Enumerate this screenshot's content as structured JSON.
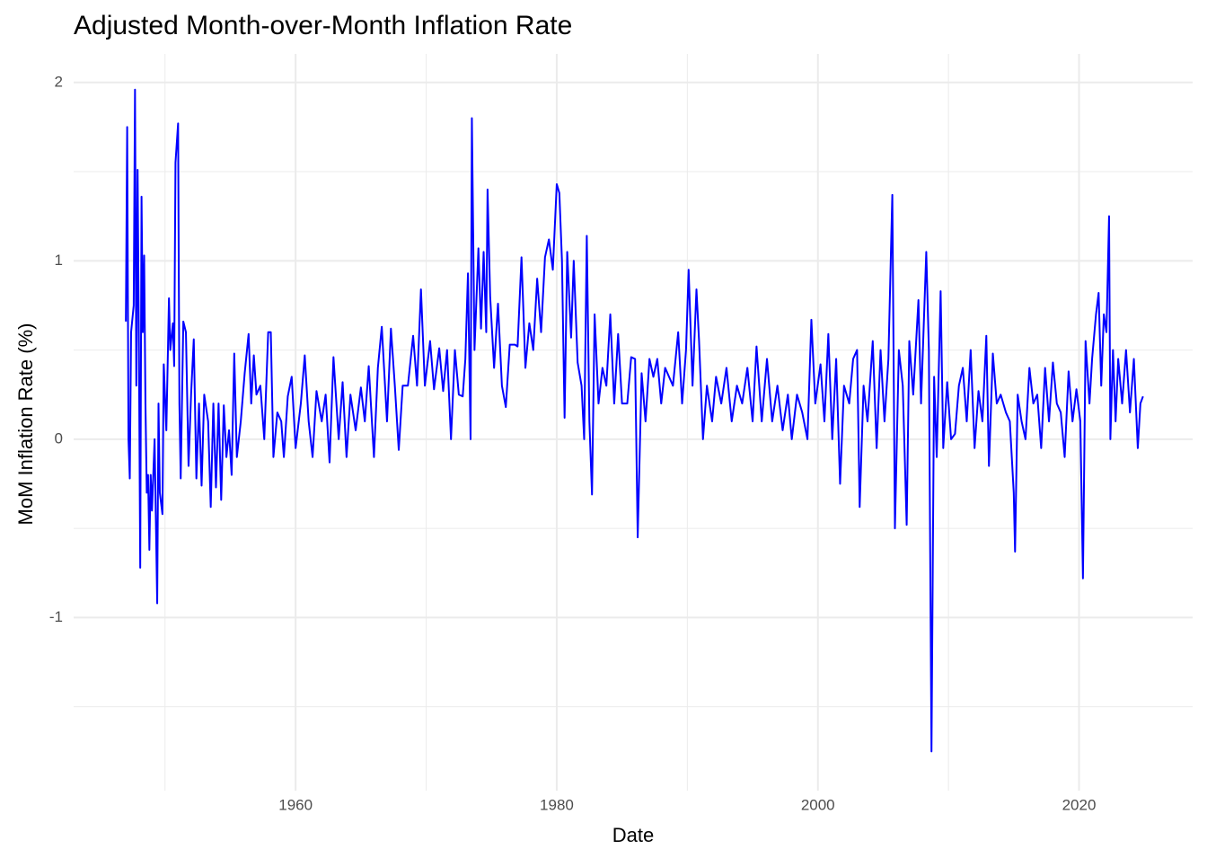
{
  "chart_data": {
    "type": "line",
    "title": "Adjusted Month-over-Month Inflation Rate",
    "x_label": "Date",
    "y_label": "MoM Inflation Rate (%)",
    "color": "#0000ff",
    "grid": true,
    "xlim": [
      1943.0,
      2028.7
    ],
    "xticks": [
      1960,
      1980,
      2000,
      2020
    ],
    "x_minor_grid": [
      1950,
      1970,
      1990,
      2010
    ],
    "ylim": [
      -1.97,
      2.16
    ],
    "yticks": [
      -1,
      0,
      1,
      2
    ],
    "y_minor_grid": [
      -1.5,
      -0.5,
      0.5,
      1.5
    ],
    "x": [
      1947.0,
      1947.1,
      1947.2,
      1947.3,
      1947.4,
      1947.6,
      1947.7,
      1947.8,
      1947.9,
      1948.0,
      1948.1,
      1948.2,
      1948.3,
      1948.4,
      1948.5,
      1948.6,
      1948.7,
      1948.8,
      1948.9,
      1949.0,
      1949.2,
      1949.4,
      1949.5,
      1949.6,
      1949.8,
      1949.9,
      1950.1,
      1950.3,
      1950.4,
      1950.6,
      1950.7,
      1950.8,
      1951.0,
      1951.1,
      1951.2,
      1951.4,
      1951.6,
      1951.8,
      1952.0,
      1952.2,
      1952.4,
      1952.6,
      1952.8,
      1953.0,
      1953.3,
      1953.5,
      1953.7,
      1953.9,
      1954.1,
      1954.3,
      1954.5,
      1954.7,
      1954.9,
      1955.1,
      1955.3,
      1955.5,
      1955.8,
      1956.1,
      1956.4,
      1956.6,
      1956.8,
      1957.0,
      1957.3,
      1957.6,
      1957.9,
      1958.1,
      1958.3,
      1958.6,
      1958.9,
      1959.1,
      1959.4,
      1959.7,
      1960.0,
      1960.4,
      1960.7,
      1961.0,
      1961.3,
      1961.6,
      1962.0,
      1962.3,
      1962.6,
      1962.9,
      1963.3,
      1963.6,
      1963.9,
      1964.2,
      1964.6,
      1965.0,
      1965.3,
      1965.6,
      1966.0,
      1966.3,
      1966.6,
      1967.0,
      1967.3,
      1967.6,
      1967.9,
      1968.2,
      1968.6,
      1969.0,
      1969.3,
      1969.6,
      1969.9,
      1970.3,
      1970.6,
      1971.0,
      1971.3,
      1971.6,
      1971.9,
      1972.2,
      1972.5,
      1972.8,
      1973.0,
      1973.2,
      1973.4,
      1973.5,
      1973.7,
      1974.0,
      1974.2,
      1974.4,
      1974.6,
      1974.7,
      1974.9,
      1975.2,
      1975.5,
      1975.8,
      1976.1,
      1976.4,
      1976.8,
      1977.0,
      1977.3,
      1977.6,
      1977.9,
      1978.2,
      1978.5,
      1978.8,
      1979.1,
      1979.4,
      1979.7,
      1980.0,
      1980.2,
      1980.4,
      1980.6,
      1980.8,
      1981.1,
      1981.3,
      1981.6,
      1981.9,
      1982.1,
      1982.3,
      1982.5,
      1982.7,
      1982.9,
      1983.2,
      1983.5,
      1983.8,
      1984.1,
      1984.4,
      1984.7,
      1985.0,
      1985.4,
      1985.7,
      1986.0,
      1986.2,
      1986.5,
      1986.8,
      1987.1,
      1987.4,
      1987.7,
      1988.0,
      1988.3,
      1988.6,
      1988.9,
      1989.3,
      1989.6,
      1989.9,
      1990.1,
      1990.4,
      1990.7,
      1990.9,
      1991.2,
      1991.5,
      1991.9,
      1992.2,
      1992.6,
      1993.0,
      1993.4,
      1993.8,
      1994.2,
      1994.6,
      1995.0,
      1995.3,
      1995.7,
      1996.1,
      1996.5,
      1996.9,
      1997.3,
      1997.7,
      1998.0,
      1998.4,
      1998.8,
      1999.2,
      1999.5,
      1999.8,
      2000.2,
      2000.5,
      2000.8,
      2001.1,
      2001.4,
      2001.7,
      2002.0,
      2002.4,
      2002.7,
      2003.0,
      2003.2,
      2003.5,
      2003.8,
      2004.2,
      2004.5,
      2004.8,
      2005.1,
      2005.4,
      2005.7,
      2005.9,
      2006.2,
      2006.5,
      2006.8,
      2007.0,
      2007.3,
      2007.7,
      2007.9,
      2008.3,
      2008.5,
      2008.7,
      2008.9,
      2009.1,
      2009.4,
      2009.6,
      2009.9,
      2010.2,
      2010.5,
      2010.8,
      2011.1,
      2011.4,
      2011.7,
      2012.0,
      2012.3,
      2012.6,
      2012.9,
      2013.1,
      2013.4,
      2013.7,
      2014.0,
      2014.4,
      2014.7,
      2015.0,
      2015.1,
      2015.3,
      2015.6,
      2015.9,
      2016.2,
      2016.5,
      2016.8,
      2017.1,
      2017.4,
      2017.7,
      2018.0,
      2018.3,
      2018.6,
      2018.9,
      2019.2,
      2019.5,
      2019.8,
      2020.1,
      2020.3,
      2020.5,
      2020.8,
      2021.0,
      2021.3,
      2021.5,
      2021.7,
      2021.9,
      2022.1,
      2022.3,
      2022.4,
      2022.6,
      2022.8,
      2023.0,
      2023.3,
      2023.6,
      2023.9,
      2024.2,
      2024.5,
      2024.7,
      2024.9
    ],
    "values": [
      0.66,
      1.75,
      0.0,
      -0.22,
      0.6,
      0.75,
      1.96,
      0.3,
      1.51,
      0.5,
      -0.72,
      1.36,
      0.6,
      1.03,
      0.2,
      -0.3,
      -0.2,
      -0.62,
      -0.2,
      -0.4,
      0.0,
      -0.92,
      0.2,
      -0.3,
      -0.42,
      0.42,
      0.05,
      0.79,
      0.5,
      0.65,
      0.41,
      1.55,
      1.77,
      0.2,
      -0.22,
      0.66,
      0.6,
      -0.15,
      0.26,
      0.56,
      -0.22,
      0.2,
      -0.26,
      0.25,
      0.1,
      -0.38,
      0.2,
      -0.27,
      0.2,
      -0.34,
      0.19,
      -0.1,
      0.05,
      -0.2,
      0.48,
      -0.1,
      0.1,
      0.37,
      0.59,
      0.2,
      0.47,
      0.25,
      0.3,
      0.0,
      0.6,
      0.6,
      -0.1,
      0.15,
      0.1,
      -0.1,
      0.24,
      0.35,
      -0.05,
      0.2,
      0.47,
      0.1,
      -0.1,
      0.27,
      0.1,
      0.25,
      -0.13,
      0.46,
      0.0,
      0.32,
      -0.1,
      0.25,
      0.05,
      0.29,
      0.1,
      0.41,
      -0.1,
      0.4,
      0.63,
      0.1,
      0.62,
      0.3,
      -0.06,
      0.3,
      0.3,
      0.58,
      0.3,
      0.84,
      0.3,
      0.55,
      0.28,
      0.51,
      0.27,
      0.5,
      0.0,
      0.5,
      0.25,
      0.24,
      0.45,
      0.93,
      0.0,
      1.8,
      0.5,
      1.07,
      0.62,
      1.05,
      0.6,
      1.4,
      0.8,
      0.4,
      0.76,
      0.3,
      0.18,
      0.53,
      0.53,
      0.52,
      1.02,
      0.4,
      0.65,
      0.5,
      0.9,
      0.6,
      1.02,
      1.12,
      0.95,
      1.43,
      1.38,
      1.0,
      0.12,
      1.05,
      0.57,
      1.0,
      0.43,
      0.3,
      0.0,
      1.14,
      0.1,
      -0.31,
      0.7,
      0.2,
      0.4,
      0.3,
      0.7,
      0.2,
      0.59,
      0.2,
      0.2,
      0.46,
      0.45,
      -0.55,
      0.37,
      0.1,
      0.45,
      0.35,
      0.45,
      0.2,
      0.4,
      0.35,
      0.3,
      0.6,
      0.2,
      0.5,
      0.95,
      0.3,
      0.84,
      0.55,
      0.0,
      0.3,
      0.1,
      0.35,
      0.2,
      0.4,
      0.1,
      0.3,
      0.2,
      0.4,
      0.1,
      0.52,
      0.1,
      0.45,
      0.1,
      0.3,
      0.05,
      0.25,
      0.0,
      0.25,
      0.15,
      0.0,
      0.67,
      0.2,
      0.42,
      0.1,
      0.59,
      0.0,
      0.45,
      -0.25,
      0.3,
      0.2,
      0.45,
      0.5,
      -0.38,
      0.3,
      0.1,
      0.55,
      -0.05,
      0.5,
      0.1,
      0.45,
      1.37,
      -0.5,
      0.5,
      0.3,
      -0.48,
      0.55,
      0.25,
      0.78,
      0.2,
      1.05,
      0.5,
      -1.75,
      0.35,
      -0.1,
      0.83,
      -0.05,
      0.32,
      0.0,
      0.03,
      0.3,
      0.4,
      0.1,
      0.5,
      -0.05,
      0.27,
      0.1,
      0.58,
      -0.15,
      0.48,
      0.2,
      0.25,
      0.15,
      0.1,
      -0.3,
      -0.63,
      0.25,
      0.1,
      0.0,
      0.4,
      0.2,
      0.25,
      -0.05,
      0.4,
      0.1,
      0.43,
      0.2,
      0.15,
      -0.1,
      0.38,
      0.1,
      0.28,
      0.1,
      -0.78,
      0.55,
      0.2,
      0.45,
      0.7,
      0.82,
      0.3,
      0.7,
      0.6,
      1.25,
      0.0,
      0.5,
      0.1,
      0.45,
      0.2,
      0.5,
      0.15,
      0.45,
      -0.05,
      0.2,
      0.24
    ]
  }
}
